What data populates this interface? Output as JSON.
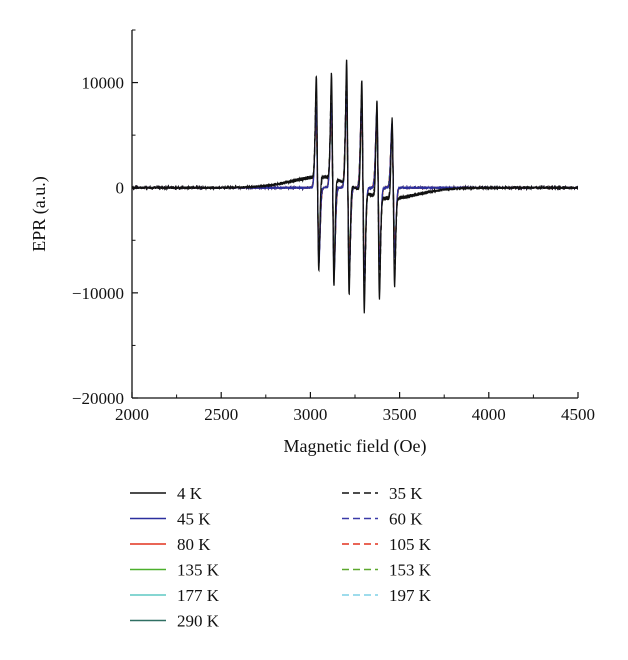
{
  "chart_data": {
    "type": "line",
    "title": "",
    "xlabel": "Magnetic field (Oe)",
    "ylabel": "EPR (a.u.)",
    "xlim": [
      2000,
      4500
    ],
    "ylim": [
      -20000,
      15000
    ],
    "xticks": [
      2000,
      2500,
      3000,
      3500,
      4000,
      4500
    ],
    "yticks": [
      -20000,
      -10000,
      0,
      10000
    ],
    "ytick_labels": [
      "−20000",
      "−10000",
      "0",
      "10000"
    ],
    "grid": false,
    "legend_position": "bottom",
    "hyperfine_lines": [
      {
        "field": 3040,
        "max": 9600,
        "min": -9000
      },
      {
        "field": 3125,
        "max": 10000,
        "min": -10300
      },
      {
        "field": 3210,
        "max": 11800,
        "min": -10500
      },
      {
        "field": 3295,
        "max": 10600,
        "min": -11400
      },
      {
        "field": 3380,
        "max": 9200,
        "min": -9600
      },
      {
        "field": 3465,
        "max": 7700,
        "min": -8300
      }
    ],
    "series": [
      {
        "name": "4 K",
        "color": "#111111",
        "dash": "solid",
        "amplitude": 1.0
      },
      {
        "name": "35 K",
        "color": "#111111",
        "dash": "dashed",
        "amplitude": 0.86
      },
      {
        "name": "45 K",
        "color": "#2b2f9e",
        "dash": "solid",
        "amplitude": 0.8
      },
      {
        "name": "60 K",
        "color": "#3a3aa8",
        "dash": "dashed",
        "amplitude": 0.74
      },
      {
        "name": "80 K",
        "color": "#e2321f",
        "dash": "solid",
        "amplitude": 0.7
      },
      {
        "name": "105 K",
        "color": "#e2321f",
        "dash": "dashed",
        "amplitude": 0.68
      },
      {
        "name": "135 K",
        "color": "#4caf2c",
        "dash": "solid",
        "amplitude": 0.66
      },
      {
        "name": "153 K",
        "color": "#5ca82e",
        "dash": "dashed",
        "amplitude": 0.65
      },
      {
        "name": "177 K",
        "color": "#5ec9c4",
        "dash": "solid",
        "amplitude": 0.64
      },
      {
        "name": "197 K",
        "color": "#7fd0e6",
        "dash": "dashed",
        "amplitude": 0.63
      },
      {
        "name": "290 K",
        "color": "#2f6f62",
        "dash": "solid",
        "amplitude": 0.62
      }
    ]
  }
}
